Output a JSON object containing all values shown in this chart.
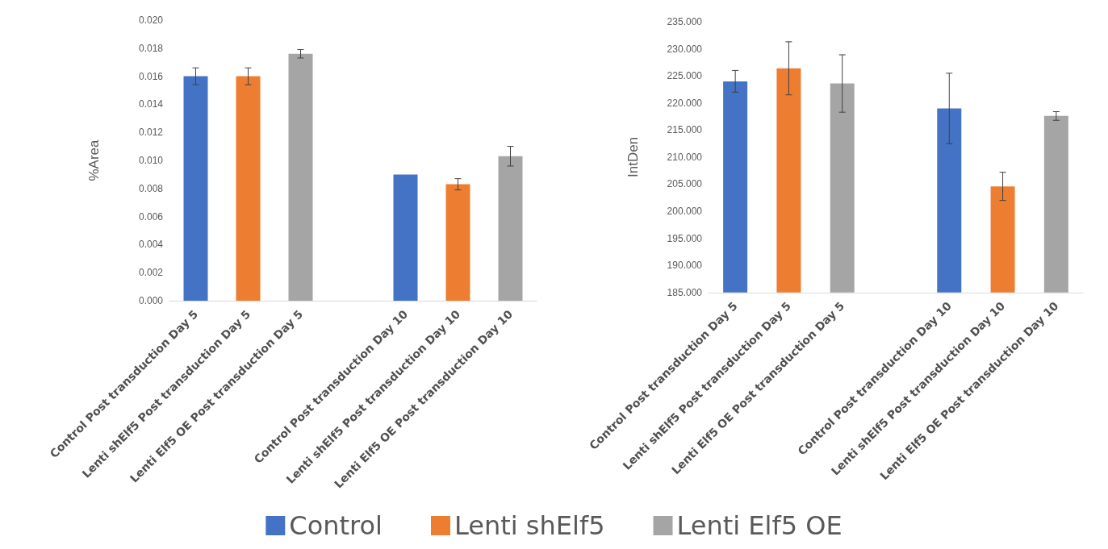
{
  "chart_data": [
    {
      "type": "bar",
      "ylabel": "%Area",
      "legend": "bottom",
      "categories": [
        "Control Post transduction Day 5",
        "Lenti shElf5 Post transduction Day 5",
        "Lenti Elf5 OE Post transduction Day 5",
        null,
        "Control Post transduction Day 10",
        "Lenti shElf5 Post transduction Day 10",
        "Lenti Elf5 OE Post transduction Day 10"
      ],
      "series": [
        {
          "name": "Control",
          "color": "#4472c4",
          "values": [
            0.016,
            null,
            null,
            null,
            0.009,
            null,
            null
          ],
          "errors": [
            0.0006,
            null,
            null,
            null,
            null,
            null,
            null
          ]
        },
        {
          "name": "Lenti shElf5",
          "color": "#ed7d31",
          "values": [
            null,
            0.016,
            null,
            null,
            null,
            0.0083,
            null
          ],
          "errors": [
            null,
            0.0006,
            null,
            null,
            null,
            0.0004,
            null
          ]
        },
        {
          "name": "Lenti Elf5 OE",
          "color": "#a5a5a5",
          "values": [
            null,
            null,
            0.0176,
            null,
            null,
            null,
            0.0103
          ],
          "errors": [
            null,
            null,
            0.0003,
            null,
            null,
            null,
            0.0007
          ]
        }
      ],
      "ylim": [
        0,
        0.02
      ],
      "yticks": [
        {
          "value": 0,
          "label": "0.000"
        },
        {
          "value": 0.002,
          "label": "0.002"
        },
        {
          "value": 0.004,
          "label": "0.004"
        },
        {
          "value": 0.006,
          "label": "0.006"
        },
        {
          "value": 0.008,
          "label": "0.008"
        },
        {
          "value": 0.01,
          "label": "0.010"
        },
        {
          "value": 0.012,
          "label": "0.012"
        },
        {
          "value": 0.014,
          "label": "0.014"
        },
        {
          "value": 0.016,
          "label": "0.016"
        },
        {
          "value": 0.018,
          "label": "0.018"
        },
        {
          "value": 0.02,
          "label": "0.020"
        }
      ]
    },
    {
      "type": "bar",
      "ylabel": "IntDen",
      "categories": [
        "Control Post transduction Day 5",
        "Lenti shElf5 Post transduction Day 5",
        "Lenti Elf5 OE Post transduction Day 5",
        null,
        "Control Post transduction Day 10",
        "Lenti shElf5 Post transduction Day 10",
        "Lenti Elf5 OE Post transduction Day 10"
      ],
      "series": [
        {
          "color": "#4472c4",
          "values": [
            224.0,
            null,
            null,
            null,
            219.0,
            null,
            null
          ],
          "errors": [
            2.0,
            null,
            null,
            null,
            6.5,
            null,
            null
          ]
        },
        {
          "color": "#ed7d31",
          "values": [
            null,
            226.4,
            null,
            null,
            null,
            204.6,
            null
          ],
          "errors": [
            null,
            4.9,
            null,
            null,
            null,
            2.6,
            null
          ]
        },
        {
          "color": "#a5a5a5",
          "values": [
            null,
            null,
            223.6,
            null,
            null,
            null,
            217.6
          ],
          "errors": [
            null,
            null,
            5.3,
            null,
            null,
            null,
            0.8
          ]
        }
      ],
      "ylim": [
        185,
        235
      ],
      "yticks": [
        {
          "value": 185,
          "label": "185.000"
        },
        {
          "value": 190,
          "label": "190.000"
        },
        {
          "value": 195,
          "label": "195.000"
        },
        {
          "value": 200,
          "label": "200.000"
        },
        {
          "value": 205,
          "label": "205.000"
        },
        {
          "value": 210,
          "label": "210.000"
        },
        {
          "value": 215,
          "label": "215.000"
        },
        {
          "value": 220,
          "label": "220.000"
        },
        {
          "value": 225,
          "label": "225.000"
        },
        {
          "value": 230,
          "label": "230.000"
        },
        {
          "value": 235,
          "label": "235.000"
        }
      ]
    }
  ]
}
